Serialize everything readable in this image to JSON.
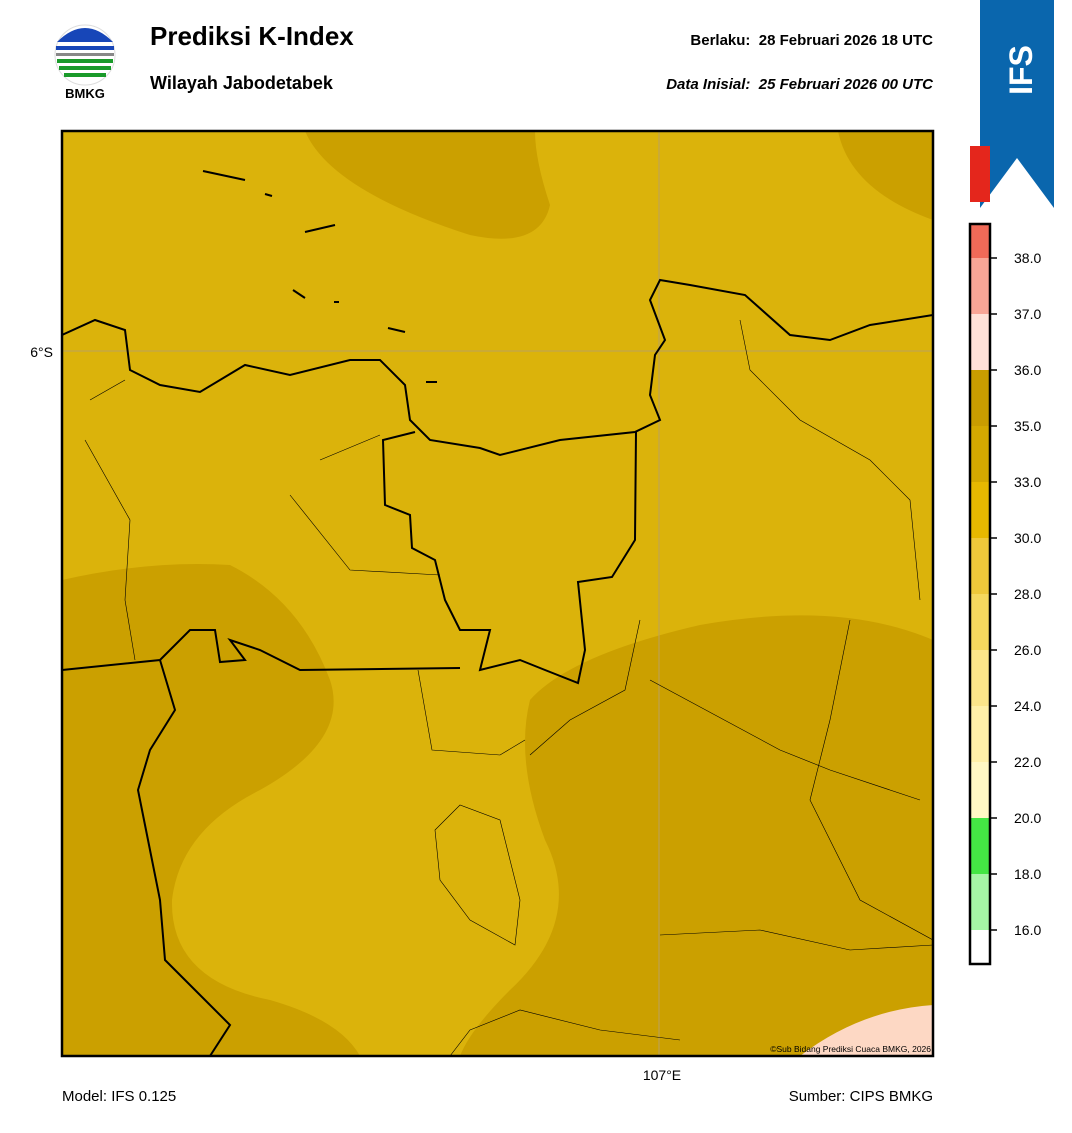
{
  "header": {
    "logo_text": "BMKG",
    "title": "Prediksi K-Index",
    "subtitle": "Wilayah Jabodetabek",
    "valid": "Berlaku:  28 Februari 2026 18 UTC",
    "init": "Data Inisial:  25 Februari 2026 00 UTC",
    "model_badge": "IFS"
  },
  "map": {
    "lat_label": "6°S",
    "lon_label": "107°E",
    "credit": "©Sub Bidang Prediksi Cuaca BMKG, 2026"
  },
  "colorbar": {
    "ticks": [
      {
        "value": 16,
        "label": "16.0"
      },
      {
        "value": 18,
        "label": "18.0"
      },
      {
        "value": 20,
        "label": "20.0"
      },
      {
        "value": 22,
        "label": "22.0"
      },
      {
        "value": 24,
        "label": "24.0"
      },
      {
        "value": 26,
        "label": "26.0"
      },
      {
        "value": 28,
        "label": "28.0"
      },
      {
        "value": 30,
        "label": "30.0"
      },
      {
        "value": 33,
        "label": "33.0"
      },
      {
        "value": 35,
        "label": "35.0"
      },
      {
        "value": 36,
        "label": "36.0"
      },
      {
        "value": 37,
        "label": "37.0"
      },
      {
        "value": 38,
        "label": "38.0"
      }
    ],
    "colors": [
      "#ffffff",
      "#a6f5a6",
      "#44e644",
      "#fff8c4",
      "#fff0a8",
      "#fbe58a",
      "#f5d85e",
      "#eec83a",
      "#e6b800",
      "#d4a800",
      "#c99c00",
      "#ffe2d8",
      "#f8a696",
      "#f06a58",
      "#e4261c"
    ]
  },
  "footer": {
    "model": "Model: IFS 0.125",
    "source": "Sumber: CIPS BMKG"
  }
}
